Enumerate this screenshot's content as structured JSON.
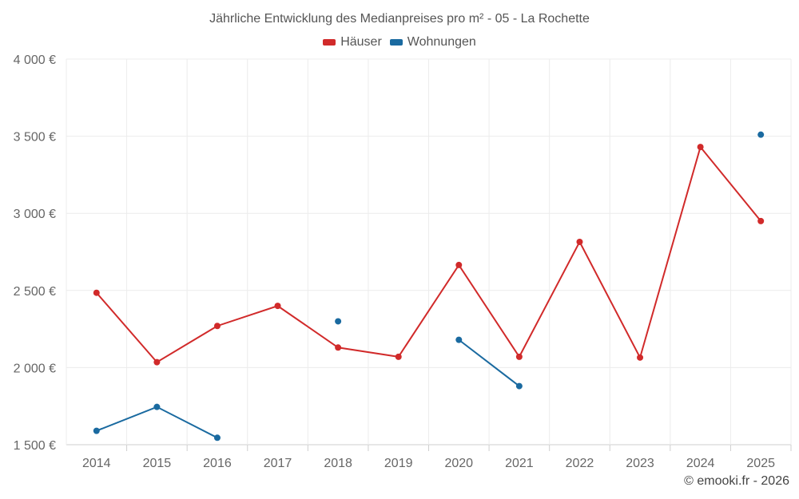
{
  "chart_data": {
    "type": "line",
    "title": "Jährliche Entwicklung des Medianpreises pro m² - 05 - La Rochette",
    "categories": [
      "2014",
      "2015",
      "2016",
      "2017",
      "2018",
      "2019",
      "2020",
      "2021",
      "2022",
      "2023",
      "2024",
      "2025"
    ],
    "y_ticks": [
      "1 500 €",
      "2 000 €",
      "2 500 €",
      "3 000 €",
      "3 500 €",
      "4 000 €"
    ],
    "y_tick_values": [
      1500,
      2000,
      2500,
      3000,
      3500,
      4000
    ],
    "ylim": [
      1500,
      4000
    ],
    "grid": true,
    "legend_position": "top-center",
    "series": [
      {
        "name": "Häuser",
        "color": "#d12a2a",
        "values": [
          2485,
          2035,
          2270,
          2400,
          2130,
          2070,
          2665,
          2070,
          2815,
          2065,
          3430,
          2950
        ]
      },
      {
        "name": "Wohnungen",
        "color": "#1a6aa0",
        "values": [
          1590,
          1745,
          1545,
          null,
          2300,
          null,
          2180,
          1880,
          null,
          null,
          null,
          3510
        ]
      }
    ]
  },
  "footer": {
    "copyright": "© emooki.fr - 2026"
  }
}
